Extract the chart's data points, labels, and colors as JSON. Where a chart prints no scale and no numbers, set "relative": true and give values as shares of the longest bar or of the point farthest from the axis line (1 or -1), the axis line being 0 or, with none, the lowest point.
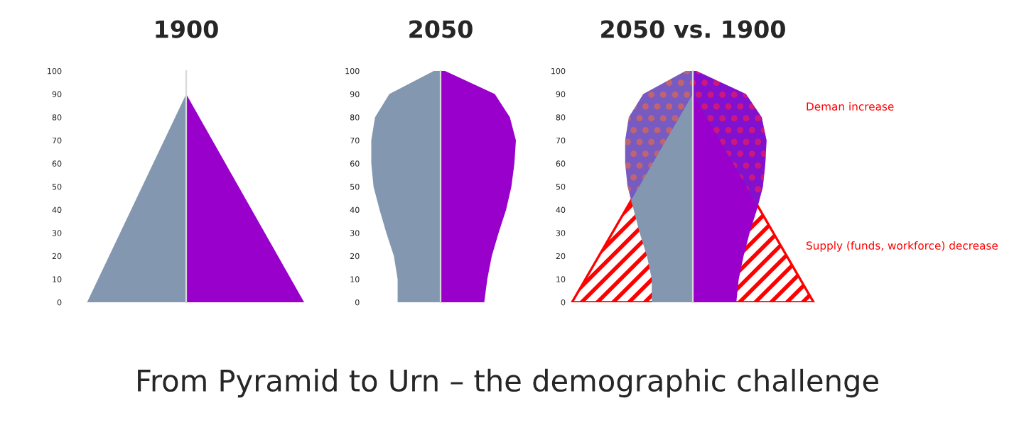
{
  "chart_data": [
    {
      "type": "area",
      "orientation": "horizontal",
      "relative": true,
      "title": "1900",
      "ylim": [
        0,
        100
      ],
      "yticks": [
        0,
        10,
        20,
        30,
        40,
        50,
        60,
        70,
        80,
        90,
        100
      ],
      "annotations": [
        "From Pyramid to Urn – the demographic challenge"
      ],
      "series": [
        {
          "color": "#8497b0",
          "x": [
            0,
            90
          ],
          "values": [
            -0.84,
            0
          ]
        },
        {
          "color": "#9900cc",
          "x": [
            0,
            90
          ],
          "values": [
            1,
            0
          ]
        }
      ]
    },
    {
      "type": "area",
      "orientation": "horizontal",
      "relative": true,
      "title": "2050",
      "ylim": [
        0,
        100
      ],
      "yticks": [
        0,
        10,
        20,
        30,
        40,
        50,
        60,
        70,
        80,
        90,
        100
      ],
      "series": [
        {
          "color": "#8497b0",
          "x": [
            0,
            10,
            20,
            30,
            40,
            50,
            60,
            70,
            80,
            90,
            100
          ],
          "values": [
            -0.57,
            -0.57,
            -0.62,
            -0.72,
            -0.81,
            -0.89,
            -0.92,
            -0.92,
            -0.87,
            -0.68,
            -0.09
          ]
        },
        {
          "color": "#9900cc",
          "x": [
            0,
            10,
            20,
            30,
            40,
            50,
            60,
            70,
            80,
            90,
            100
          ],
          "values": [
            0.58,
            0.62,
            0.68,
            0.77,
            0.87,
            0.94,
            0.98,
            1,
            0.92,
            0.72,
            0.06
          ]
        }
      ]
    },
    {
      "type": "area",
      "orientation": "horizontal",
      "relative": true,
      "title": "2050 vs. 1900",
      "ylim": [
        0,
        100
      ],
      "yticks": [
        0,
        10,
        20,
        30,
        40,
        50,
        60,
        70,
        80,
        90,
        100
      ],
      "annotations": [
        "Deman increase",
        "Supply (funds, workforce) decrease"
      ],
      "series": [
        {
          "color": "#8497b0",
          "x": [
            0,
            10,
            20,
            30,
            40,
            50,
            60,
            70,
            80,
            90,
            100
          ],
          "values": [
            -0.34,
            -0.34,
            -0.38,
            -0.44,
            -0.49,
            -0.54,
            -0.56,
            -0.56,
            -0.53,
            -0.41,
            -0.06
          ]
        },
        {
          "color": "#9900cc",
          "x": [
            0,
            10,
            20,
            30,
            40,
            50,
            60,
            70,
            80,
            90,
            100
          ],
          "values": [
            0.36,
            0.38,
            0.42,
            0.47,
            0.53,
            0.58,
            0.6,
            0.61,
            0.57,
            0.44,
            0.03
          ]
        },
        {
          "color": "#ff0000",
          "x": [
            0,
            90
          ],
          "values": [
            -1,
            0
          ]
        },
        {
          "color": "#ff0000",
          "x": [
            0,
            90
          ],
          "values": [
            1,
            0
          ]
        }
      ]
    }
  ]
}
